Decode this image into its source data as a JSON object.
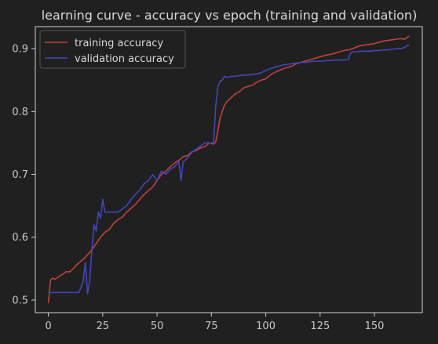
{
  "chart_data": {
    "type": "line",
    "title": "learning curve - accuracy vs epoch (training and validation)",
    "xlabel": "",
    "ylabel": "",
    "xlim": [
      -6,
      172
    ],
    "ylim": [
      0.48,
      0.935
    ],
    "xticks": [
      0,
      25,
      50,
      75,
      100,
      125,
      150
    ],
    "yticks": [
      0.5,
      0.6,
      0.7,
      0.8,
      0.9
    ],
    "xtick_labels": [
      "0",
      "25",
      "50",
      "75",
      "100",
      "125",
      "150"
    ],
    "ytick_labels": [
      "0.5",
      "0.6",
      "0.7",
      "0.8",
      "0.9"
    ],
    "grid": false,
    "legend_position": "upper-left",
    "colors": {
      "background": "#202020",
      "axes_background": "#202020",
      "axes_edge": "#cfcfcf",
      "text": "#d8d8d8"
    },
    "series": [
      {
        "name": "training accuracy",
        "color": "#c0413d",
        "x": [
          0,
          1,
          2,
          3,
          5,
          7,
          8,
          10,
          12,
          13,
          15,
          17,
          18,
          20,
          22,
          24,
          26,
          28,
          30,
          32,
          34,
          36,
          38,
          40,
          42,
          44,
          46,
          48,
          50,
          52,
          54,
          56,
          58,
          60,
          62,
          64,
          66,
          68,
          70,
          72,
          74,
          76,
          77,
          78,
          79,
          80,
          81,
          82,
          84,
          86,
          88,
          90,
          92,
          94,
          96,
          98,
          100,
          102,
          104,
          106,
          108,
          110,
          112,
          114,
          116,
          118,
          120,
          122,
          124,
          126,
          128,
          130,
          132,
          134,
          136,
          138,
          140,
          142,
          144,
          146,
          148,
          150,
          152,
          154,
          156,
          158,
          160,
          162,
          164,
          165,
          166
        ],
        "y": [
          0.495,
          0.532,
          0.535,
          0.533,
          0.538,
          0.542,
          0.545,
          0.545,
          0.552,
          0.556,
          0.562,
          0.568,
          0.572,
          0.58,
          0.59,
          0.6,
          0.608,
          0.612,
          0.622,
          0.628,
          0.632,
          0.64,
          0.646,
          0.652,
          0.66,
          0.668,
          0.674,
          0.68,
          0.69,
          0.7,
          0.705,
          0.712,
          0.718,
          0.722,
          0.728,
          0.73,
          0.736,
          0.738,
          0.742,
          0.744,
          0.75,
          0.748,
          0.752,
          0.77,
          0.79,
          0.8,
          0.81,
          0.815,
          0.822,
          0.828,
          0.832,
          0.838,
          0.84,
          0.842,
          0.847,
          0.85,
          0.852,
          0.858,
          0.862,
          0.865,
          0.868,
          0.87,
          0.872,
          0.876,
          0.878,
          0.88,
          0.882,
          0.884,
          0.886,
          0.888,
          0.89,
          0.891,
          0.893,
          0.895,
          0.897,
          0.898,
          0.9,
          0.903,
          0.905,
          0.906,
          0.907,
          0.908,
          0.91,
          0.912,
          0.913,
          0.914,
          0.915,
          0.916,
          0.915,
          0.918,
          0.92
        ]
      },
      {
        "name": "validation accuracy",
        "color": "#4444bb",
        "x": [
          0,
          2,
          4,
          6,
          8,
          10,
          12,
          14,
          15,
          16,
          17,
          18,
          19,
          20,
          21,
          22,
          23,
          24,
          25,
          26,
          28,
          30,
          32,
          34,
          36,
          38,
          40,
          42,
          44,
          46,
          48,
          50,
          52,
          54,
          56,
          58,
          60,
          61,
          62,
          64,
          66,
          68,
          70,
          72,
          74,
          76,
          77,
          78,
          79,
          80,
          81,
          82,
          84,
          86,
          88,
          90,
          92,
          94,
          96,
          98,
          100,
          102,
          104,
          106,
          108,
          110,
          112,
          114,
          116,
          118,
          120,
          122,
          124,
          126,
          128,
          130,
          132,
          134,
          136,
          138,
          139,
          140,
          142,
          144,
          146,
          148,
          150,
          152,
          154,
          156,
          158,
          160,
          162,
          164,
          165,
          166
        ],
        "y": [
          0.512,
          0.512,
          0.512,
          0.512,
          0.512,
          0.512,
          0.512,
          0.512,
          0.52,
          0.53,
          0.56,
          0.51,
          0.53,
          0.58,
          0.62,
          0.61,
          0.64,
          0.63,
          0.66,
          0.64,
          0.64,
          0.64,
          0.64,
          0.645,
          0.65,
          0.66,
          0.668,
          0.675,
          0.685,
          0.69,
          0.7,
          0.69,
          0.705,
          0.7,
          0.708,
          0.712,
          0.72,
          0.69,
          0.72,
          0.726,
          0.735,
          0.74,
          0.745,
          0.75,
          0.75,
          0.75,
          0.81,
          0.84,
          0.848,
          0.85,
          0.856,
          0.854,
          0.856,
          0.856,
          0.857,
          0.858,
          0.858,
          0.859,
          0.86,
          0.862,
          0.865,
          0.868,
          0.87,
          0.872,
          0.874,
          0.875,
          0.876,
          0.877,
          0.878,
          0.878,
          0.879,
          0.88,
          0.88,
          0.88,
          0.881,
          0.881,
          0.882,
          0.882,
          0.882,
          0.883,
          0.893,
          0.895,
          0.895,
          0.896,
          0.896,
          0.896,
          0.897,
          0.897,
          0.898,
          0.898,
          0.899,
          0.9,
          0.9,
          0.902,
          0.905,
          0.905
        ]
      }
    ]
  }
}
